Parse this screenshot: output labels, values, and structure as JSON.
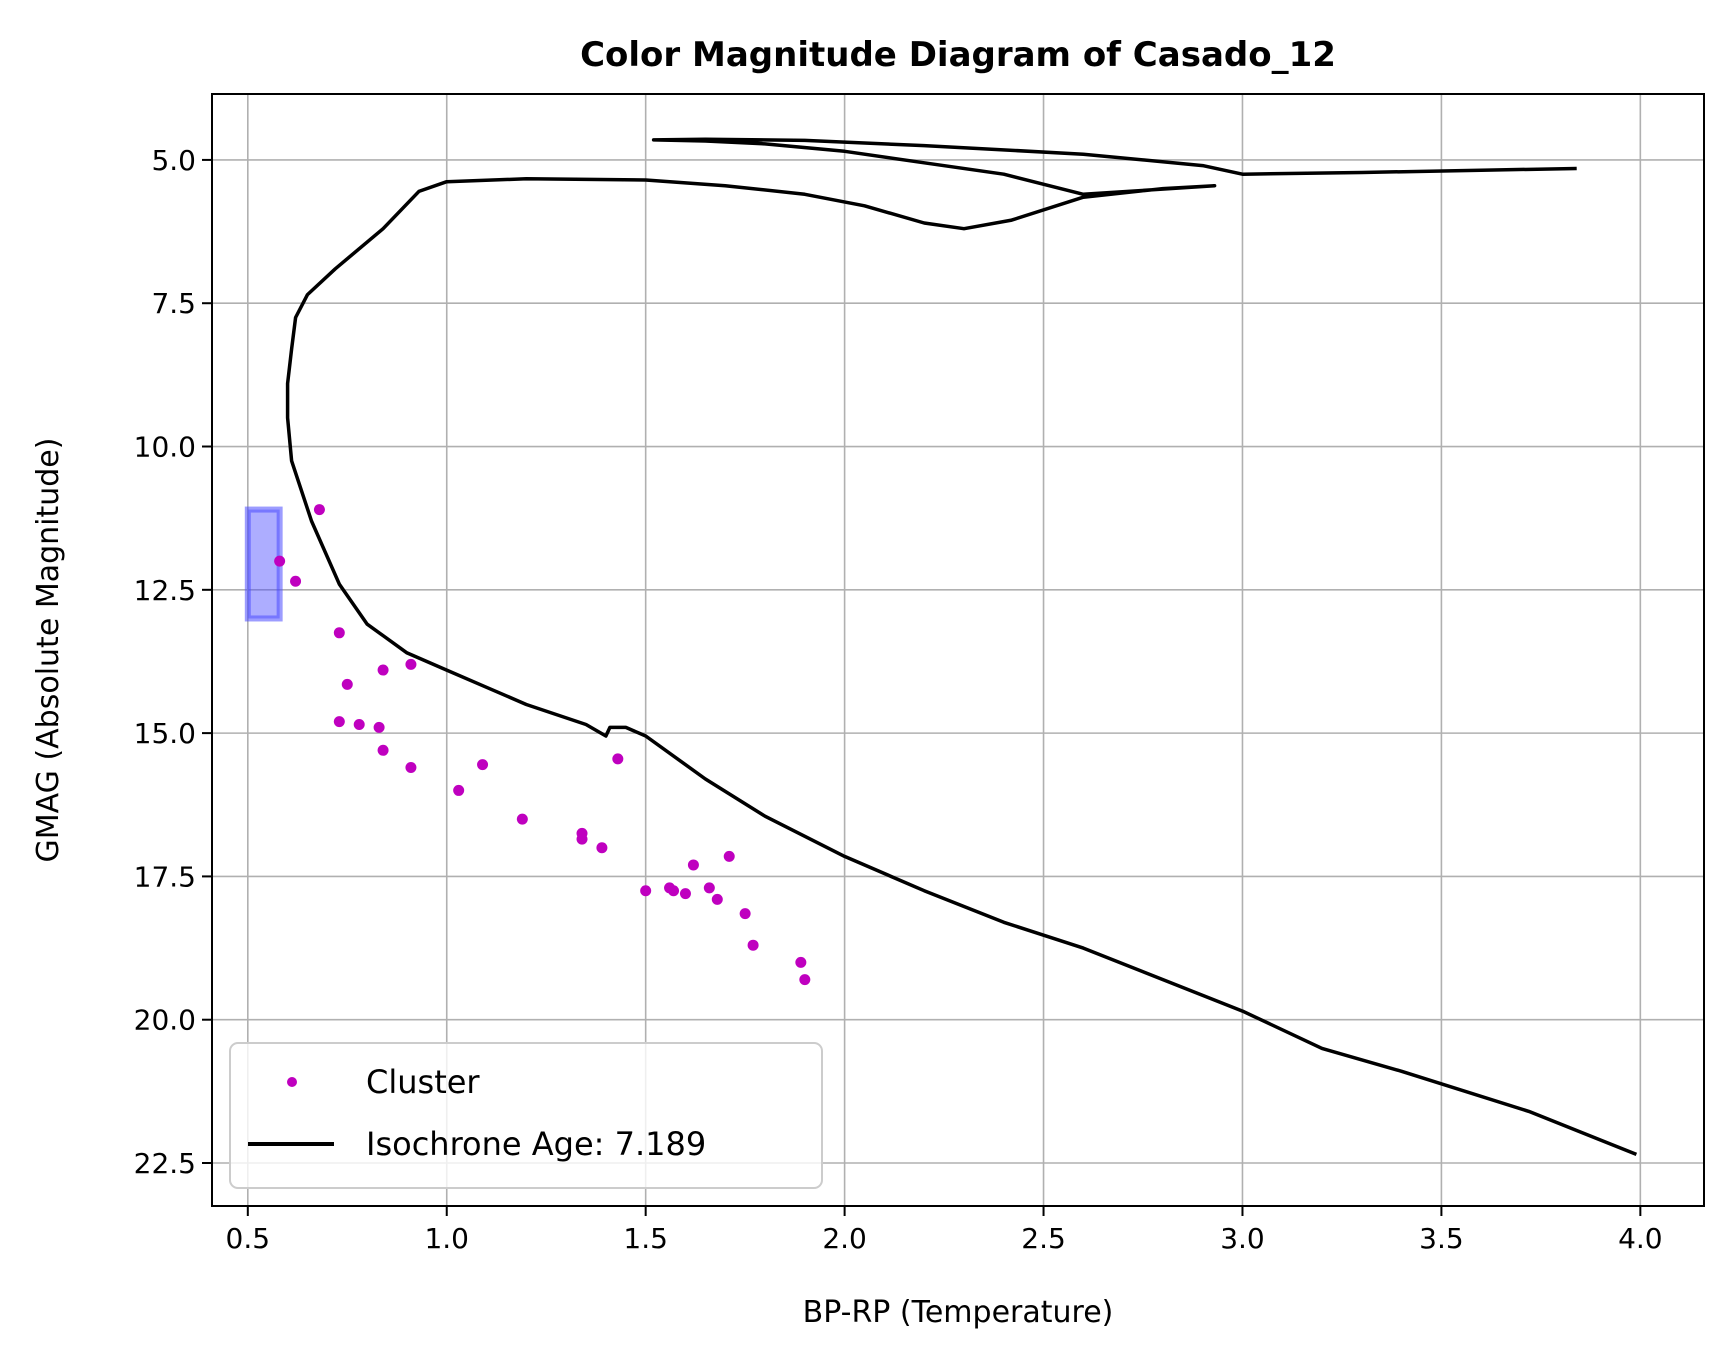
{
  "chart_data": {
    "type": "scatter",
    "title": "Color Magnitude Diagram of Casado_12",
    "xlabel": "BP-RP (Temperature)",
    "ylabel": "GMAG (Absolute Magnitude)",
    "xlim": [
      0.41,
      4.16
    ],
    "ylim": [
      23.25,
      3.85
    ],
    "y_inverted": true,
    "grid": true,
    "legend_position": "lower-left",
    "x_ticks": [
      "0.5",
      "1.0",
      "1.5",
      "2.0",
      "2.5",
      "3.0",
      "3.5",
      "4.0"
    ],
    "y_ticks": [
      "5.0",
      "7.5",
      "10.0",
      "12.5",
      "15.0",
      "17.5",
      "20.0",
      "22.5"
    ],
    "series": [
      {
        "name": "Cluster",
        "kind": "scatter",
        "color": "#bf00bf",
        "points": [
          [
            0.68,
            11.1
          ],
          [
            0.58,
            12.0
          ],
          [
            0.62,
            12.35
          ],
          [
            0.73,
            13.25
          ],
          [
            0.75,
            14.15
          ],
          [
            0.84,
            13.9
          ],
          [
            0.91,
            13.8
          ],
          [
            0.73,
            14.8
          ],
          [
            0.78,
            14.85
          ],
          [
            0.83,
            14.9
          ],
          [
            0.84,
            15.3
          ],
          [
            0.91,
            15.6
          ],
          [
            1.03,
            16.0
          ],
          [
            1.09,
            15.55
          ],
          [
            1.19,
            16.5
          ],
          [
            1.34,
            16.75
          ],
          [
            1.34,
            16.85
          ],
          [
            1.39,
            17.0
          ],
          [
            1.43,
            15.45
          ],
          [
            1.5,
            17.75
          ],
          [
            1.56,
            17.7
          ],
          [
            1.57,
            17.75
          ],
          [
            1.6,
            17.8
          ],
          [
            1.62,
            17.3
          ],
          [
            1.66,
            17.7
          ],
          [
            1.68,
            17.9
          ],
          [
            1.71,
            17.15
          ],
          [
            1.75,
            18.15
          ],
          [
            1.77,
            18.7
          ],
          [
            1.89,
            19.0
          ],
          [
            1.9,
            19.3
          ]
        ]
      },
      {
        "name": "Isochrone Age: 7.189",
        "kind": "line",
        "color": "#000000",
        "points": [
          [
            3.99,
            22.35
          ],
          [
            3.72,
            21.6
          ],
          [
            3.4,
            20.9
          ],
          [
            3.2,
            20.5
          ],
          [
            3.0,
            19.85
          ],
          [
            2.8,
            19.3
          ],
          [
            2.6,
            18.75
          ],
          [
            2.4,
            18.3
          ],
          [
            2.2,
            17.75
          ],
          [
            2.0,
            17.15
          ],
          [
            1.8,
            16.45
          ],
          [
            1.65,
            15.8
          ],
          [
            1.5,
            15.05
          ],
          [
            1.45,
            14.9
          ],
          [
            1.41,
            14.9
          ],
          [
            1.4,
            15.05
          ],
          [
            1.35,
            14.85
          ],
          [
            1.2,
            14.5
          ],
          [
            1.1,
            14.2
          ],
          [
            1.0,
            13.9
          ],
          [
            0.9,
            13.6
          ],
          [
            0.8,
            13.1
          ],
          [
            0.73,
            12.4
          ],
          [
            0.66,
            11.3
          ],
          [
            0.61,
            10.25
          ],
          [
            0.6,
            9.5
          ],
          [
            0.6,
            8.9
          ],
          [
            0.61,
            8.3
          ],
          [
            0.62,
            7.75
          ],
          [
            0.65,
            7.35
          ],
          [
            0.72,
            6.9
          ],
          [
            0.84,
            6.2
          ],
          [
            0.93,
            5.55
          ],
          [
            1.0,
            5.38
          ],
          [
            1.2,
            5.33
          ],
          [
            1.5,
            5.35
          ],
          [
            1.7,
            5.45
          ],
          [
            1.9,
            5.6
          ],
          [
            2.05,
            5.8
          ],
          [
            2.2,
            6.1
          ],
          [
            2.3,
            6.2
          ],
          [
            2.42,
            6.05
          ],
          [
            2.6,
            5.65
          ],
          [
            2.8,
            5.5
          ],
          [
            2.93,
            5.45
          ],
          [
            2.6,
            5.6
          ],
          [
            2.4,
            5.25
          ],
          [
            2.2,
            5.05
          ],
          [
            2.0,
            4.85
          ],
          [
            1.8,
            4.72
          ],
          [
            1.65,
            4.67
          ],
          [
            1.52,
            4.65
          ],
          [
            1.65,
            4.64
          ],
          [
            1.9,
            4.66
          ],
          [
            2.2,
            4.75
          ],
          [
            2.6,
            4.9
          ],
          [
            2.9,
            5.1
          ],
          [
            3.0,
            5.25
          ],
          [
            3.3,
            5.22
          ],
          [
            3.6,
            5.18
          ],
          [
            3.84,
            5.15
          ]
        ]
      }
    ],
    "highlight_box": {
      "color": "#4a4aff",
      "x_range": [
        0.5,
        0.58
      ],
      "y_range": [
        11.1,
        13.0
      ]
    }
  }
}
